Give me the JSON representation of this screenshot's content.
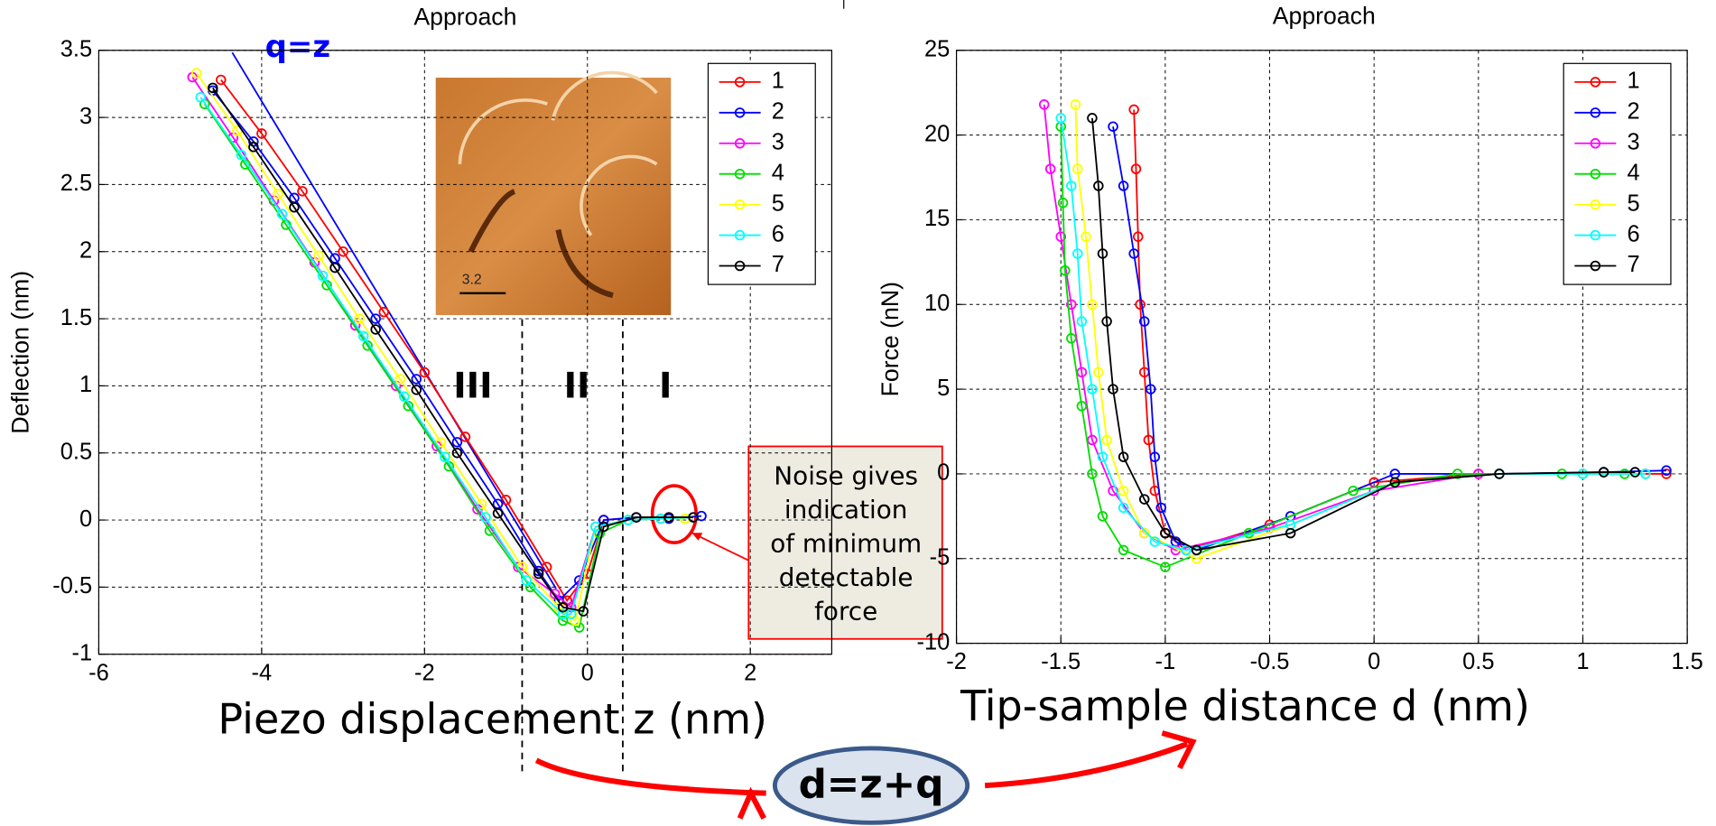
{
  "chart_data": [
    {
      "type": "line",
      "title": "Approach",
      "xlabel": "Piezo displacement z (nm)",
      "ylabel": "Deflection (nm)",
      "xlim": [
        -6,
        3
      ],
      "ylim": [
        -1,
        3.5
      ],
      "xticks": [
        -6,
        -4,
        -2,
        0,
        2
      ],
      "yticks": [
        -1,
        -0.5,
        0,
        0.5,
        1,
        1.5,
        2,
        2.5,
        3,
        3.5
      ],
      "grid": true,
      "legend": "upper right",
      "series": [
        {
          "name": "1",
          "color": "#ff0000",
          "x": [
            -4.5,
            -4,
            -3.5,
            -3,
            -2.5,
            -2,
            -1.5,
            -1,
            -0.5,
            -0.25,
            0,
            0.2,
            0.6,
            1,
            1.3
          ],
          "values": [
            3.28,
            2.88,
            2.45,
            2.0,
            1.55,
            1.1,
            0.62,
            0.15,
            -0.35,
            -0.6,
            -0.4,
            0,
            0.02,
            0.02,
            0.02
          ]
        },
        {
          "name": "2",
          "color": "#0000ff",
          "x": [
            -4.6,
            -4.1,
            -3.6,
            -3.1,
            -2.6,
            -2.1,
            -1.6,
            -1.1,
            -0.6,
            -0.35,
            -0.1,
            0.2,
            0.6,
            1,
            1.4
          ],
          "values": [
            3.2,
            2.82,
            2.4,
            1.95,
            1.5,
            1.05,
            0.58,
            0.12,
            -0.38,
            -0.6,
            -0.45,
            0,
            0.02,
            0.01,
            0.03
          ]
        },
        {
          "name": "3",
          "color": "#ff00ff",
          "x": [
            -4.85,
            -4.35,
            -3.85,
            -3.35,
            -2.85,
            -2.35,
            -1.85,
            -1.35,
            -0.85,
            -0.4,
            -0.2,
            0.1,
            0.5,
            0.9,
            1.3
          ],
          "values": [
            3.3,
            2.85,
            2.38,
            1.92,
            1.45,
            1.0,
            0.55,
            0.08,
            -0.35,
            -0.55,
            -0.65,
            -0.05,
            0,
            0.01,
            0.02
          ]
        },
        {
          "name": "4",
          "color": "#00dd00",
          "x": [
            -4.7,
            -4.2,
            -3.7,
            -3.2,
            -2.7,
            -2.2,
            -1.7,
            -1.2,
            -0.7,
            -0.3,
            -0.1,
            0.15,
            0.5,
            0.9,
            1.2
          ],
          "values": [
            3.1,
            2.65,
            2.2,
            1.75,
            1.3,
            0.85,
            0.4,
            -0.08,
            -0.5,
            -0.75,
            -0.8,
            -0.1,
            0,
            0.01,
            0.01
          ]
        },
        {
          "name": "5",
          "color": "#ffff00",
          "x": [
            -4.8,
            -4.3,
            -3.8,
            -3.3,
            -2.8,
            -2.3,
            -1.8,
            -1.3,
            -0.8,
            -0.35,
            -0.15,
            0.1,
            0.5,
            0.9,
            1.2
          ],
          "values": [
            3.33,
            2.9,
            2.43,
            1.97,
            1.5,
            1.05,
            0.58,
            0.12,
            -0.35,
            -0.65,
            -0.75,
            -0.05,
            0,
            0.01,
            0.01
          ]
        },
        {
          "name": "6",
          "color": "#00ffff",
          "x": [
            -4.75,
            -4.25,
            -3.75,
            -3.25,
            -2.75,
            -2.25,
            -1.75,
            -1.25,
            -0.75,
            -0.3,
            -0.2,
            0.1,
            0.5,
            0.9,
            1.3
          ],
          "values": [
            3.15,
            2.72,
            2.28,
            1.82,
            1.37,
            0.92,
            0.47,
            0.02,
            -0.45,
            -0.7,
            -0.7,
            -0.05,
            0,
            0.01,
            0.02
          ]
        },
        {
          "name": "7",
          "color": "#000000",
          "x": [
            -4.6,
            -4.1,
            -3.6,
            -3.1,
            -2.6,
            -2.1,
            -1.6,
            -1.1,
            -0.6,
            -0.3,
            -0.05,
            0.2,
            0.6,
            1,
            1.3
          ],
          "values": [
            3.22,
            2.78,
            2.33,
            1.88,
            1.42,
            0.97,
            0.5,
            0.05,
            -0.4,
            -0.65,
            -0.68,
            -0.05,
            0.02,
            0.02,
            0.02
          ]
        }
      ]
    },
    {
      "type": "line",
      "title": "Approach",
      "xlabel": "Tip-sample distance d (nm)",
      "ylabel": "Force (nN)",
      "xlim": [
        -2,
        1.5
      ],
      "ylim": [
        -10,
        25
      ],
      "xticks": [
        -2,
        -1.5,
        -1,
        -0.5,
        0,
        0.5,
        1,
        1.5
      ],
      "yticks": [
        -10,
        -5,
        0,
        5,
        10,
        15,
        20,
        25
      ],
      "grid": true,
      "legend": "upper right",
      "series": [
        {
          "name": "1",
          "color": "#ff0000",
          "x": [
            -1.15,
            -1.14,
            -1.13,
            -1.12,
            -1.1,
            -1.08,
            -1.05,
            -1.0,
            -0.9,
            -0.5,
            0,
            0.5,
            1.0,
            1.4
          ],
          "values": [
            21.5,
            18,
            14,
            10,
            6,
            2,
            -1,
            -3.5,
            -4.5,
            -3,
            -0.5,
            0,
            0,
            0
          ]
        },
        {
          "name": "2",
          "color": "#0000ff",
          "x": [
            -1.25,
            -1.2,
            -1.15,
            -1.1,
            -1.07,
            -1.05,
            -1.02,
            -0.95,
            -0.85,
            -0.4,
            0.1,
            0.6,
            1.1,
            1.4
          ],
          "values": [
            20.5,
            17,
            13,
            9,
            5,
            1,
            -2,
            -4,
            -4.5,
            -2.5,
            0,
            0,
            0.1,
            0.2
          ]
        },
        {
          "name": "3",
          "color": "#ff00ff",
          "x": [
            -1.58,
            -1.55,
            -1.5,
            -1.45,
            -1.4,
            -1.35,
            -1.25,
            -1.1,
            -0.95,
            -0.5,
            0,
            0.5,
            1,
            1.3
          ],
          "values": [
            21.8,
            18,
            14,
            10,
            6,
            2,
            -1,
            -3.5,
            -4.5,
            -3.2,
            -1,
            0,
            0,
            0
          ]
        },
        {
          "name": "4",
          "color": "#00dd00",
          "x": [
            -1.5,
            -1.49,
            -1.48,
            -1.45,
            -1.4,
            -1.35,
            -1.3,
            -1.2,
            -1.0,
            -0.6,
            -0.1,
            0.4,
            0.9,
            1.2
          ],
          "values": [
            20.5,
            16,
            12,
            8,
            4,
            0,
            -2.5,
            -4.5,
            -5.5,
            -3.5,
            -1,
            0,
            0,
            0
          ]
        },
        {
          "name": "5",
          "color": "#ffff00",
          "x": [
            -1.43,
            -1.42,
            -1.38,
            -1.35,
            -1.32,
            -1.28,
            -1.2,
            -1.1,
            -0.85,
            -0.4,
            0.1,
            0.6,
            1,
            1.3
          ],
          "values": [
            21.8,
            18,
            14,
            10,
            6,
            2,
            -1,
            -3.5,
            -5,
            -3,
            -0.5,
            0,
            0,
            0
          ]
        },
        {
          "name": "6",
          "color": "#00ffff",
          "x": [
            -1.5,
            -1.45,
            -1.42,
            -1.4,
            -1.35,
            -1.3,
            -1.2,
            -1.05,
            -0.9,
            -0.4,
            0.1,
            0.6,
            1,
            1.3
          ],
          "values": [
            21,
            17,
            13,
            9,
            5,
            1,
            -2,
            -4,
            -4.5,
            -3,
            -0.5,
            0,
            0,
            0
          ]
        },
        {
          "name": "7",
          "color": "#000000",
          "x": [
            -1.35,
            -1.32,
            -1.3,
            -1.28,
            -1.25,
            -1.2,
            -1.1,
            -1.0,
            -0.85,
            -0.4,
            0.1,
            0.6,
            1.1,
            1.25
          ],
          "values": [
            21,
            17,
            13,
            9,
            5,
            1,
            -1.5,
            -3.5,
            -4.5,
            -3.5,
            -0.5,
            0,
            0.1,
            0.1
          ]
        }
      ]
    }
  ],
  "annotations": {
    "q_line_label": "q=z",
    "regions": [
      "III",
      "II",
      "I"
    ],
    "inset_scale": "3.2",
    "noise_note": [
      "Noise gives",
      "indication",
      "of minimum",
      "detectable",
      "force"
    ],
    "equation": "d=z+q"
  }
}
